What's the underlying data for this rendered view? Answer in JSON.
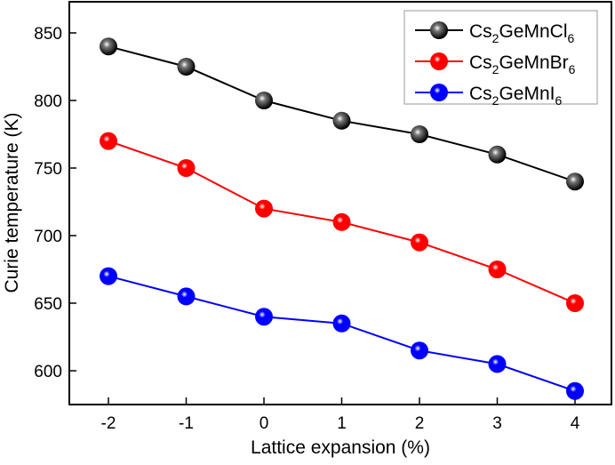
{
  "chart_data": {
    "type": "line",
    "title": "",
    "xlabel": "Lattice expansion (%)",
    "ylabel": "Curie temperature (K)",
    "x": [
      -2,
      -1,
      0,
      1,
      2,
      3,
      4
    ],
    "x_ticks": [
      "-2",
      "-1",
      "0",
      "1",
      "2",
      "3",
      "4"
    ],
    "y_ticks": [
      "600",
      "650",
      "700",
      "750",
      "800",
      "850"
    ],
    "xlim": [
      -2.5,
      4.5
    ],
    "ylim": [
      575,
      875
    ],
    "grid": false,
    "legend_position": "top-right",
    "series": [
      {
        "name": "Cs2GeMnCl6",
        "name_parts": [
          "Cs",
          "2",
          "GeMnCl",
          "6"
        ],
        "color": "#000000",
        "values": [
          840,
          825,
          800,
          785,
          775,
          760,
          740
        ]
      },
      {
        "name": "Cs2GeMnBr6",
        "name_parts": [
          "Cs",
          "2",
          "GeMnBr",
          "6"
        ],
        "color": "#ff0000",
        "values": [
          770,
          750,
          720,
          710,
          695,
          675,
          650
        ]
      },
      {
        "name": "Cs2GeMnI6",
        "name_parts": [
          "Cs",
          "2",
          "GeMnI",
          "6"
        ],
        "color": "#0000ff",
        "values": [
          670,
          655,
          640,
          635,
          615,
          605,
          585
        ]
      }
    ]
  }
}
